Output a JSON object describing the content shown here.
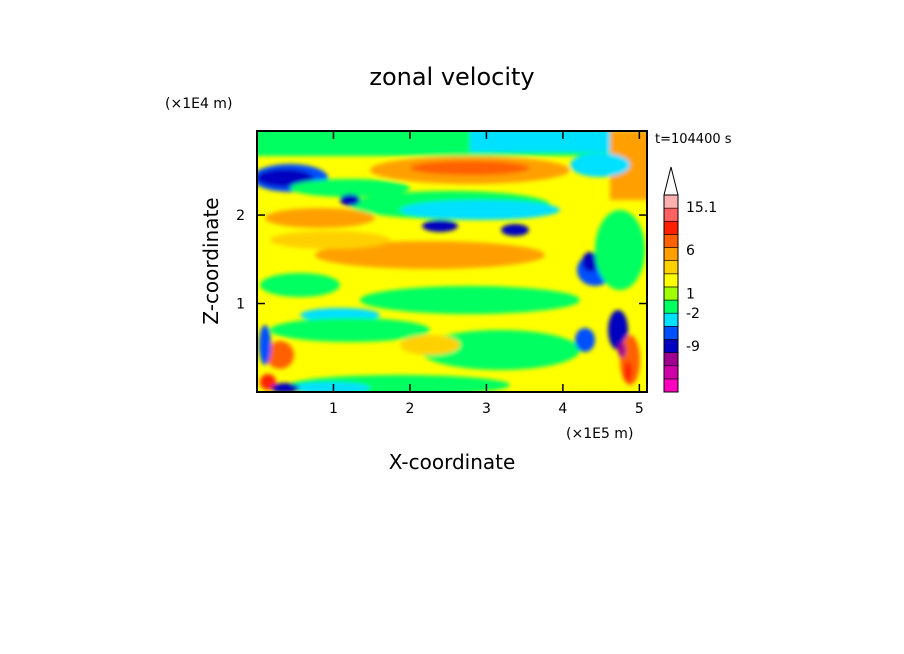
{
  "chart_data": {
    "type": "heatmap",
    "title": "zonal velocity",
    "xlabel": "X-coordinate",
    "ylabel": "Z-coordinate",
    "x_scale_label": "(×1E5 m)",
    "y_scale_label": "(×1E4 m)",
    "time_label": "t=104400 s",
    "xlim": [
      0,
      5.1
    ],
    "ylim": [
      0,
      2.95
    ],
    "x_ticks": [
      1,
      2,
      3,
      4,
      5
    ],
    "y_ticks": [
      1,
      2
    ],
    "colorbar": {
      "colors": [
        "#ff00c0",
        "#d000a8",
        "#a00090",
        "#0000c0",
        "#0050ff",
        "#00e0ff",
        "#00ff60",
        "#a0ff00",
        "#ffff00",
        "#ffd000",
        "#ffa000",
        "#ff6000",
        "#ff2000",
        "#ff6060",
        "#ffb0b0"
      ],
      "labels": [
        {
          "value": "-9",
          "level": 3.5
        },
        {
          "value": "-2",
          "level": 6
        },
        {
          "value": "1",
          "level": 7.5
        },
        {
          "value": "6",
          "level": 10.8
        },
        {
          "value": "15.1",
          "level": 14.1
        }
      ],
      "triangle_top_color": "#ffffff"
    }
  }
}
